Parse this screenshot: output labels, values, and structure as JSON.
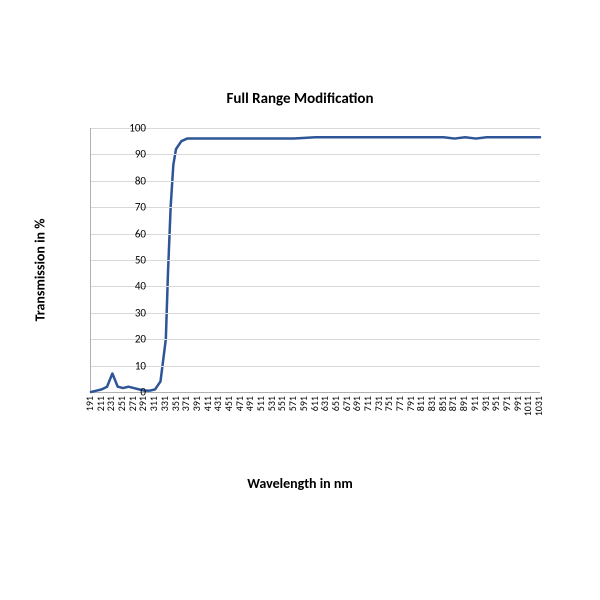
{
  "chart": {
    "type": "line",
    "title": "Full Range Modification",
    "title_fontsize": 15,
    "title_fontweight": "bold",
    "xlabel": "Wavelength in nm",
    "ylabel": "Transmission in %",
    "label_fontsize": 14,
    "label_fontweight": "bold",
    "tick_fontsize": 11,
    "xtick_fontsize": 10,
    "ylim": [
      0,
      100
    ],
    "ytick_step": 10,
    "yticks": [
      0,
      10,
      20,
      30,
      40,
      50,
      60,
      70,
      80,
      90,
      100
    ],
    "xlim": [
      191,
      1031
    ],
    "xtick_step": 20,
    "xticks": [
      191,
      211,
      231,
      251,
      271,
      291,
      311,
      331,
      351,
      371,
      391,
      411,
      431,
      451,
      471,
      491,
      511,
      531,
      551,
      571,
      591,
      611,
      631,
      651,
      671,
      691,
      711,
      731,
      751,
      771,
      791,
      811,
      831,
      851,
      871,
      891,
      911,
      931,
      951,
      971,
      991,
      1011,
      1031
    ],
    "xtick_rotation": -90,
    "background_color": "#ffffff",
    "grid_color": "#d9d9d9",
    "axis_color": "#b0b0b0",
    "line_color": "#2e5597",
    "line_width": 2.5,
    "series": {
      "x": [
        191,
        201,
        211,
        221,
        231,
        241,
        251,
        261,
        271,
        281,
        291,
        301,
        311,
        321,
        331,
        335,
        340,
        345,
        350,
        360,
        371,
        391,
        411,
        451,
        491,
        531,
        571,
        611,
        651,
        691,
        731,
        771,
        811,
        851,
        871,
        891,
        911,
        931,
        951,
        971,
        991,
        1011,
        1031
      ],
      "y": [
        0,
        0.5,
        1,
        2,
        7,
        2,
        1.5,
        2,
        1.5,
        1,
        0.5,
        0.5,
        1,
        4,
        20,
        45,
        70,
        86,
        92,
        95,
        96,
        96,
        96,
        96,
        96,
        96,
        96,
        96.5,
        96.5,
        96.5,
        96.5,
        96.5,
        96.5,
        96.5,
        96,
        96.5,
        96,
        96.5,
        96.5,
        96.5,
        96.5,
        96.5,
        96.5
      ]
    }
  }
}
